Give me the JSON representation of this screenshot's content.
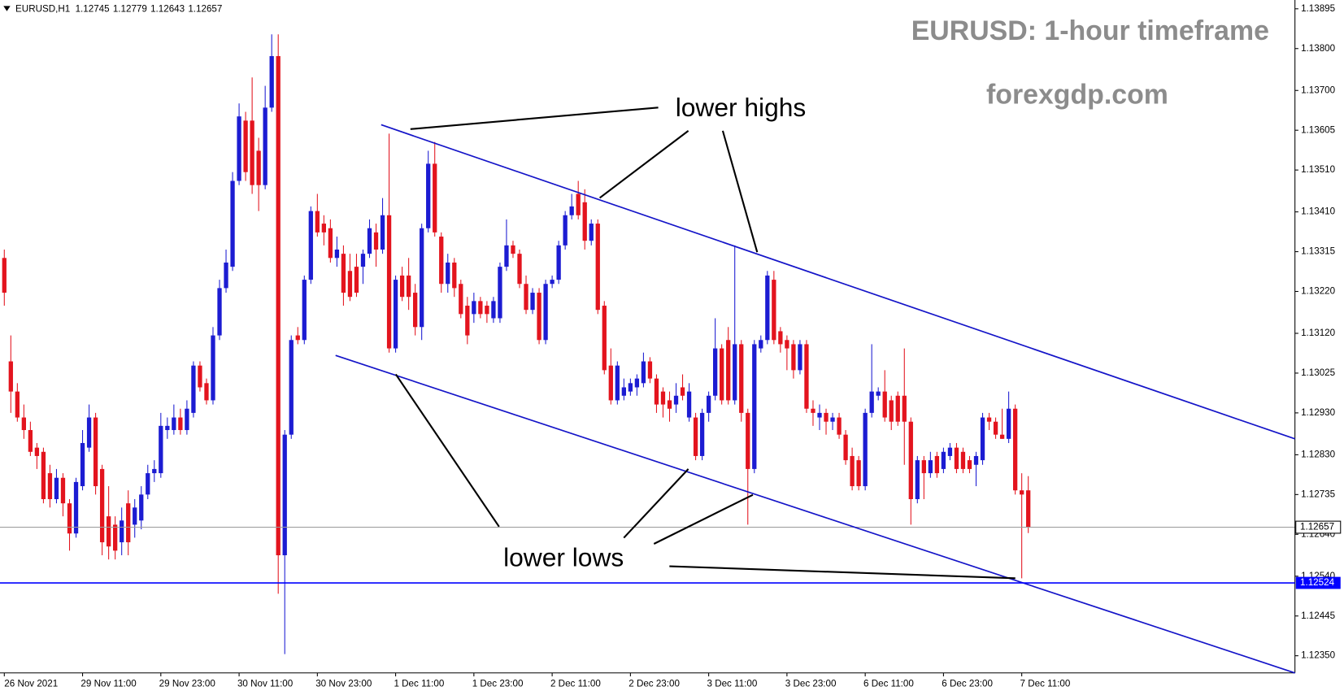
{
  "chart_data": {
    "type": "candlestick",
    "symbol": "EURUSD,H1",
    "title": "EURUSD: 1-hour timeframe",
    "watermark": "forexgdp.com",
    "annotations": [
      "lower highs",
      "lower lows"
    ],
    "up_color": "#1c1cd2",
    "down_color": "#e3141e",
    "grid": false,
    "hline": {
      "value": 1.12524,
      "color": "#0000ff"
    },
    "ylim": [
      1.12309,
      1.13916
    ],
    "yticks": [
      1.13895,
      {
        "value": 1.138,
        "label": "1.13800"
      },
      {
        "value": 1.137,
        "label": "1.13700"
      },
      1.13605,
      {
        "value": 1.1351,
        "label": "1.13510"
      },
      {
        "value": 1.1341,
        "label": "1.13410"
      },
      1.13315,
      {
        "value": 1.1322,
        "label": "1.13220"
      },
      {
        "value": 1.1312,
        "label": "1.13120"
      },
      1.13025,
      {
        "value": 1.1293,
        "label": "1.12930"
      },
      {
        "value": 1.1283,
        "label": "1.12830"
      },
      1.12735,
      {
        "value": 1.1264,
        "label": "1.12640"
      },
      {
        "value": 1.1254,
        "label": "1.12540"
      },
      1.12445,
      {
        "value": 1.1235,
        "label": "1.12350"
      }
    ],
    "categories": [
      "26 Nov 2021",
      null,
      null,
      null,
      null,
      null,
      null,
      null,
      null,
      null,
      null,
      null,
      "29 Nov 11:00",
      null,
      null,
      null,
      null,
      null,
      null,
      null,
      null,
      null,
      null,
      null,
      "29 Nov 23:00",
      null,
      null,
      null,
      null,
      null,
      null,
      null,
      null,
      null,
      null,
      null,
      "30 Nov 11:00",
      null,
      null,
      null,
      null,
      null,
      null,
      null,
      null,
      null,
      null,
      null,
      "30 Nov 23:00",
      null,
      null,
      null,
      null,
      null,
      null,
      null,
      null,
      null,
      null,
      null,
      "1 Dec 11:00",
      null,
      null,
      null,
      null,
      null,
      null,
      null,
      null,
      null,
      null,
      null,
      "1 Dec 23:00",
      null,
      null,
      null,
      null,
      null,
      null,
      null,
      null,
      null,
      null,
      null,
      "2 Dec 11:00",
      null,
      null,
      null,
      null,
      null,
      null,
      null,
      null,
      null,
      null,
      null,
      "2 Dec 23:00",
      null,
      null,
      null,
      null,
      null,
      null,
      null,
      null,
      null,
      null,
      null,
      "3 Dec 11:00",
      null,
      null,
      null,
      null,
      null,
      null,
      null,
      null,
      null,
      null,
      null,
      "3 Dec 23:00",
      null,
      null,
      null,
      null,
      null,
      null,
      null,
      null,
      null,
      null,
      null,
      "6 Dec 11:00",
      null,
      null,
      null,
      null,
      null,
      null,
      null,
      null,
      null,
      null,
      null,
      "6 Dec 23:00",
      null,
      null,
      null,
      null,
      null,
      null,
      null,
      null,
      null,
      null,
      null,
      "7 Dec 11:00",
      null
    ],
    "open": [
      1.133,
      1.13053,
      1.12981,
      1.12919,
      1.12889,
      1.12847,
      1.12837,
      1.12786,
      1.12724,
      1.12775,
      1.12714,
      1.12642,
      1.12755,
      1.12847,
      1.12919,
      1.12796,
      1.12683,
      1.12663,
      1.12621,
      1.12714,
      1.12663,
      1.12673,
      1.12735,
      1.12786,
      1.12786,
      1.12889,
      1.12889,
      1.12919,
      1.12889,
      1.1293,
      1.13043,
      1.13001,
      1.1296,
      1.13115,
      1.13228,
      1.13279,
      1.13484,
      1.13628,
      1.13628,
      1.13556,
      1.13474,
      1.13659,
      1.13782,
      1.1259,
      1.12878,
      1.13115,
      1.13104,
      1.13248,
      1.13412,
      1.13382,
      1.13371,
      1.133,
      1.1331,
      1.13269,
      1.13279,
      1.13279,
      1.1331,
      1.13361,
      1.1332,
      1.13402,
      1.13084,
      1.13258,
      1.13258,
      1.13217,
      1.13135,
      1.13371,
      1.13525,
      1.13351,
      1.13238,
      1.13289,
      1.13238,
      1.13186,
      1.13166,
      1.13197,
      1.13186,
      1.13156,
      1.13156,
      1.13279,
      1.1333,
      1.1331,
      1.13238,
      1.13176,
      1.13217,
      1.13104,
      1.13238,
      1.13248,
      1.1333,
      1.13402,
      1.13453,
      1.13433,
      1.13341,
      1.13382,
      1.13186,
      1.13043,
      1.1296,
      1.12971,
      1.12981,
      1.12991,
      1.13001,
      1.13053,
      1.13012,
      1.12981,
      1.1296,
      1.1295,
      1.12991,
      1.12919,
      1.12919,
      1.12827,
      1.1293,
      1.12971,
      1.13084,
      1.13104,
      1.1296,
      1.13094,
      1.1293,
      1.12796,
      1.13084,
      1.13104,
      1.13248,
      1.13125,
      1.13104,
      1.13094,
      1.13032,
      1.13094,
      1.1294,
      1.12919,
      1.1293,
      1.12909,
      1.12919,
      1.12878,
      1.12827,
      1.12817,
      1.12755,
      1.1293,
      1.12971,
      1.12981,
      1.1296,
      1.12971,
      1.12971,
      1.12909,
      1.12724,
      1.12817,
      1.12786,
      1.12827,
      1.12796,
      1.12827,
      1.12847,
      1.12837,
      1.12817,
      1.12806,
      1.12817,
      1.12919,
      1.12909,
      1.12878,
      1.12868,
      1.1294,
      1.12745,
      1.12745
    ],
    "high": [
      1.1332,
      1.13115,
      1.13001,
      1.1295,
      1.12909,
      1.12858,
      1.12847,
      1.12806,
      1.12796,
      1.12786,
      1.12724,
      1.12775,
      1.12889,
      1.1295,
      1.1293,
      1.12806,
      1.12755,
      1.12683,
      1.12704,
      1.12745,
      1.12724,
      1.12755,
      1.12806,
      1.12817,
      1.1293,
      1.12919,
      1.1295,
      1.1294,
      1.1296,
      1.13053,
      1.13053,
      1.13012,
      1.13135,
      1.13248,
      1.1332,
      1.13505,
      1.13669,
      1.13649,
      1.13731,
      1.13587,
      1.13711,
      1.13834,
      1.13834,
      1.12889,
      1.13115,
      1.13135,
      1.13258,
      1.13423,
      1.13453,
      1.13402,
      1.13392,
      1.13351,
      1.1333,
      1.1331,
      1.1331,
      1.1332,
      1.13392,
      1.13382,
      1.13443,
      1.13597,
      1.13258,
      1.13279,
      1.133,
      1.13238,
      1.13382,
      1.13556,
      1.13577,
      1.13361,
      1.1331,
      1.133,
      1.13248,
      1.13207,
      1.13217,
      1.13207,
      1.13197,
      1.13207,
      1.13289,
      1.13392,
      1.13341,
      1.1332,
      1.13258,
      1.13228,
      1.13228,
      1.13248,
      1.13258,
      1.13341,
      1.13412,
      1.13453,
      1.13484,
      1.13464,
      1.13392,
      1.13392,
      1.13197,
      1.13084,
      1.13053,
      1.13012,
      1.13012,
      1.13022,
      1.13074,
      1.13063,
      1.13022,
      1.12991,
      1.12981,
      1.13001,
      1.13022,
      1.13001,
      1.1293,
      1.1294,
      1.12981,
      1.13156,
      1.13094,
      1.13135,
      1.1333,
      1.13104,
      1.1294,
      1.13104,
      1.13115,
      1.13269,
      1.13269,
      1.13135,
      1.13115,
      1.13104,
      1.13104,
      1.13104,
      1.1296,
      1.1295,
      1.1294,
      1.1293,
      1.1293,
      1.12889,
      1.12847,
      1.12827,
      1.1294,
      1.13094,
      1.12991,
      1.13032,
      1.12971,
      1.12981,
      1.13084,
      1.12919,
      1.12827,
      1.12827,
      1.12837,
      1.12837,
      1.12847,
      1.12858,
      1.12858,
      1.12847,
      1.12827,
      1.12837,
      1.1293,
      1.1293,
      1.12919,
      1.1294,
      1.12981,
      1.1295,
      1.12786,
      1.12779
    ],
    "low": [
      1.13186,
      1.1293,
      1.12909,
      1.12868,
      1.12827,
      1.12796,
      1.12714,
      1.12704,
      1.12714,
      1.12683,
      1.12601,
      1.12632,
      1.12745,
      1.12837,
      1.12735,
      1.1259,
      1.1258,
      1.1258,
      1.1259,
      1.1259,
      1.12632,
      1.12652,
      1.12724,
      1.12765,
      1.12775,
      1.12868,
      1.12878,
      1.12878,
      1.12878,
      1.12919,
      1.12981,
      1.1295,
      1.1295,
      1.13104,
      1.13217,
      1.13269,
      1.13474,
      1.13484,
      1.13453,
      1.13412,
      1.13464,
      1.13649,
      1.12498,
      1.12354,
      1.12868,
      1.13094,
      1.13094,
      1.13238,
      1.13351,
      1.1333,
      1.13289,
      1.13279,
      1.13186,
      1.13197,
      1.13207,
      1.13238,
      1.133,
      1.13279,
      1.1331,
      1.13074,
      1.13074,
      1.13197,
      1.13176,
      1.13115,
      1.13104,
      1.13361,
      1.13351,
      1.13217,
      1.13217,
      1.13207,
      1.13156,
      1.13094,
      1.13145,
      1.13156,
      1.13145,
      1.13145,
      1.13145,
      1.13269,
      1.133,
      1.13228,
      1.13166,
      1.13166,
      1.13094,
      1.13094,
      1.13228,
      1.13238,
      1.1332,
      1.13392,
      1.13392,
      1.1332,
      1.1333,
      1.13166,
      1.13022,
      1.1295,
      1.1295,
      1.1296,
      1.12971,
      1.12971,
      1.12991,
      1.13001,
      1.1293,
      1.12919,
      1.12909,
      1.1293,
      1.1296,
      1.12909,
      1.12817,
      1.12817,
      1.12909,
      1.1296,
      1.1295,
      1.1295,
      1.1295,
      1.12909,
      1.12663,
      1.12786,
      1.13074,
      1.13094,
      1.13094,
      1.13074,
      1.13032,
      1.13012,
      1.13022,
      1.1293,
      1.12899,
      1.12889,
      1.12878,
      1.12889,
      1.12868,
      1.12806,
      1.12745,
      1.12745,
      1.12745,
      1.12919,
      1.1296,
      1.12909,
      1.12889,
      1.12899,
      1.12806,
      1.12663,
      1.12714,
      1.12724,
      1.12775,
      1.12775,
      1.12786,
      1.12817,
      1.12786,
      1.12786,
      1.12786,
      1.12755,
      1.12806,
      1.12889,
      1.12868,
      1.12868,
      1.12858,
      1.12735,
      1.12535,
      1.12643
    ],
    "close": [
      1.13217,
      1.12981,
      1.12919,
      1.12889,
      1.12837,
      1.12827,
      1.12724,
      1.12724,
      1.12775,
      1.12714,
      1.12642,
      1.12765,
      1.12858,
      1.12919,
      1.12755,
      1.12621,
      1.12611,
      1.12601,
      1.12673,
      1.12621,
      1.12704,
      1.12735,
      1.12786,
      1.12796,
      1.12899,
      1.12899,
      1.12919,
      1.12889,
      1.1294,
      1.13043,
      1.12991,
      1.1296,
      1.13115,
      1.13228,
      1.13289,
      1.13484,
      1.13638,
      1.13505,
      1.13474,
      1.13474,
      1.13659,
      1.13782,
      1.1259,
      1.12878,
      1.13104,
      1.13104,
      1.13248,
      1.13412,
      1.13361,
      1.13361,
      1.133,
      1.1332,
      1.13217,
      1.13207,
      1.13217,
      1.1331,
      1.13371,
      1.1332,
      1.13402,
      1.13084,
      1.13248,
      1.13207,
      1.13207,
      1.13135,
      1.13371,
      1.13525,
      1.13361,
      1.13238,
      1.13289,
      1.13228,
      1.13166,
      1.13115,
      1.13197,
      1.13166,
      1.13166,
      1.13197,
      1.13279,
      1.1333,
      1.1331,
      1.13238,
      1.13176,
      1.13217,
      1.13104,
      1.13238,
      1.13248,
      1.1333,
      1.13402,
      1.13423,
      1.13402,
      1.13341,
      1.13382,
      1.13176,
      1.13032,
      1.1296,
      1.13043,
      1.12991,
      1.13001,
      1.13012,
      1.13053,
      1.13012,
      1.1295,
      1.1295,
      1.1294,
      1.12971,
      1.12971,
      1.12981,
      1.12827,
      1.1293,
      1.12971,
      1.13084,
      1.1296,
      1.1296,
      1.13094,
      1.1293,
      1.12796,
      1.13094,
      1.13104,
      1.13258,
      1.13104,
      1.13094,
      1.13084,
      1.13032,
      1.13094,
      1.1294,
      1.1293,
      1.1293,
      1.12909,
      1.12919,
      1.12878,
      1.12817,
      1.12755,
      1.12755,
      1.1293,
      1.12981,
      1.12981,
      1.12919,
      1.12909,
      1.12909,
      1.12909,
      1.12724,
      1.12817,
      1.12786,
      1.12817,
      1.12786,
      1.12837,
      1.12847,
      1.12796,
      1.12796,
      1.12796,
      1.12827,
      1.12919,
      1.12909,
      1.12878,
      1.12868,
      1.1294,
      1.12745,
      1.12735,
      1.12657
    ]
  }
}
